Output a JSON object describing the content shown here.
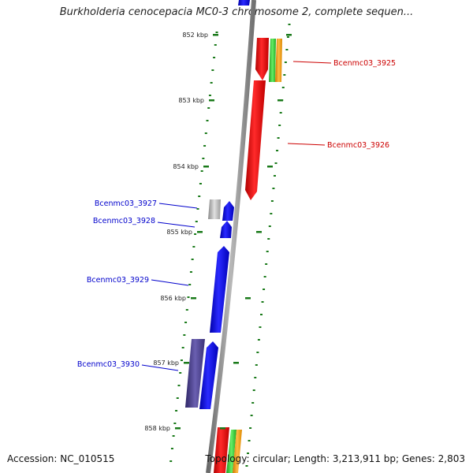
{
  "title": "Burkholderia cenocepacia MC0-3 chromosome 2, complete sequen...",
  "accession": "Accession: NC_010515",
  "topology": "Topology: circular; Length: 3,213,911 bp; Genes: 2,803",
  "colors": {
    "backbone": "#808080",
    "tick": "#1a7a1a",
    "forward_gene": "#ff0000",
    "reverse_gene": "#0000ff",
    "forward_label": "#cc0000",
    "reverse_label": "#0000cc",
    "gray_feature": "#b0b0b0",
    "purple_feature": "#4b3f8a",
    "green_feature": "#33cc33",
    "orange_feature": "#ff9900"
  },
  "ticks": [
    "852 kbp",
    "853 kbp",
    "854 kbp",
    "855 kbp",
    "856 kbp",
    "857 kbp",
    "858 kbp"
  ],
  "genes": [
    {
      "name": "Bcenmc03_3925",
      "strand": "forward"
    },
    {
      "name": "Bcenmc03_3926",
      "strand": "forward"
    },
    {
      "name": "Bcenmc03_3927",
      "strand": "reverse"
    },
    {
      "name": "Bcenmc03_3928",
      "strand": "reverse"
    },
    {
      "name": "Bcenmc03_3929",
      "strand": "reverse"
    },
    {
      "name": "Bcenmc03_3930",
      "strand": "reverse"
    }
  ]
}
